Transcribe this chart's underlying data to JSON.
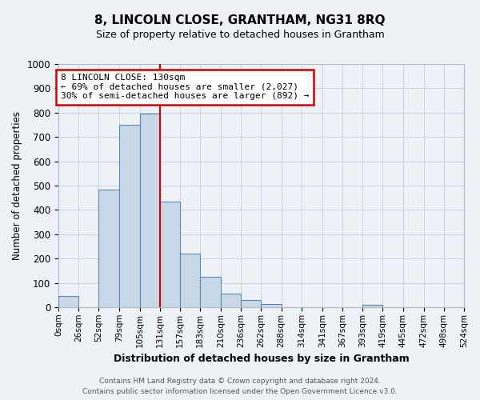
{
  "title": "8, LINCOLN CLOSE, GRANTHAM, NG31 8RQ",
  "subtitle": "Size of property relative to detached houses in Grantham",
  "xlabel": "Distribution of detached houses by size in Grantham",
  "ylabel": "Number of detached properties",
  "footnote1": "Contains HM Land Registry data © Crown copyright and database right 2024.",
  "footnote2": "Contains public sector information licensed under the Open Government Licence v3.0.",
  "bin_labels": [
    "0sqm",
    "26sqm",
    "52sqm",
    "79sqm",
    "105sqm",
    "131sqm",
    "157sqm",
    "183sqm",
    "210sqm",
    "236sqm",
    "262sqm",
    "288sqm",
    "314sqm",
    "341sqm",
    "367sqm",
    "393sqm",
    "419sqm",
    "445sqm",
    "472sqm",
    "498sqm",
    "524sqm"
  ],
  "bar_heights": [
    45,
    0,
    485,
    750,
    795,
    435,
    220,
    125,
    55,
    28,
    12,
    0,
    0,
    0,
    0,
    8,
    0,
    0,
    0,
    0
  ],
  "bar_color": "#c8d8e8",
  "bar_edge_color": "#5a8ab0",
  "vline_x": 131,
  "vline_color": "#cc0000",
  "ylim": [
    0,
    1000
  ],
  "yticks": [
    0,
    100,
    200,
    300,
    400,
    500,
    600,
    700,
    800,
    900,
    1000
  ],
  "annotation_title": "8 LINCOLN CLOSE: 130sqm",
  "annotation_line1": "← 69% of detached houses are smaller (2,027)",
  "annotation_line2": "30% of semi-detached houses are larger (892) →",
  "annotation_box_color": "#ffffff",
  "annotation_box_edge": "#cc0000",
  "grid_color": "#c8d4dc",
  "bg_color": "#eef2f6"
}
